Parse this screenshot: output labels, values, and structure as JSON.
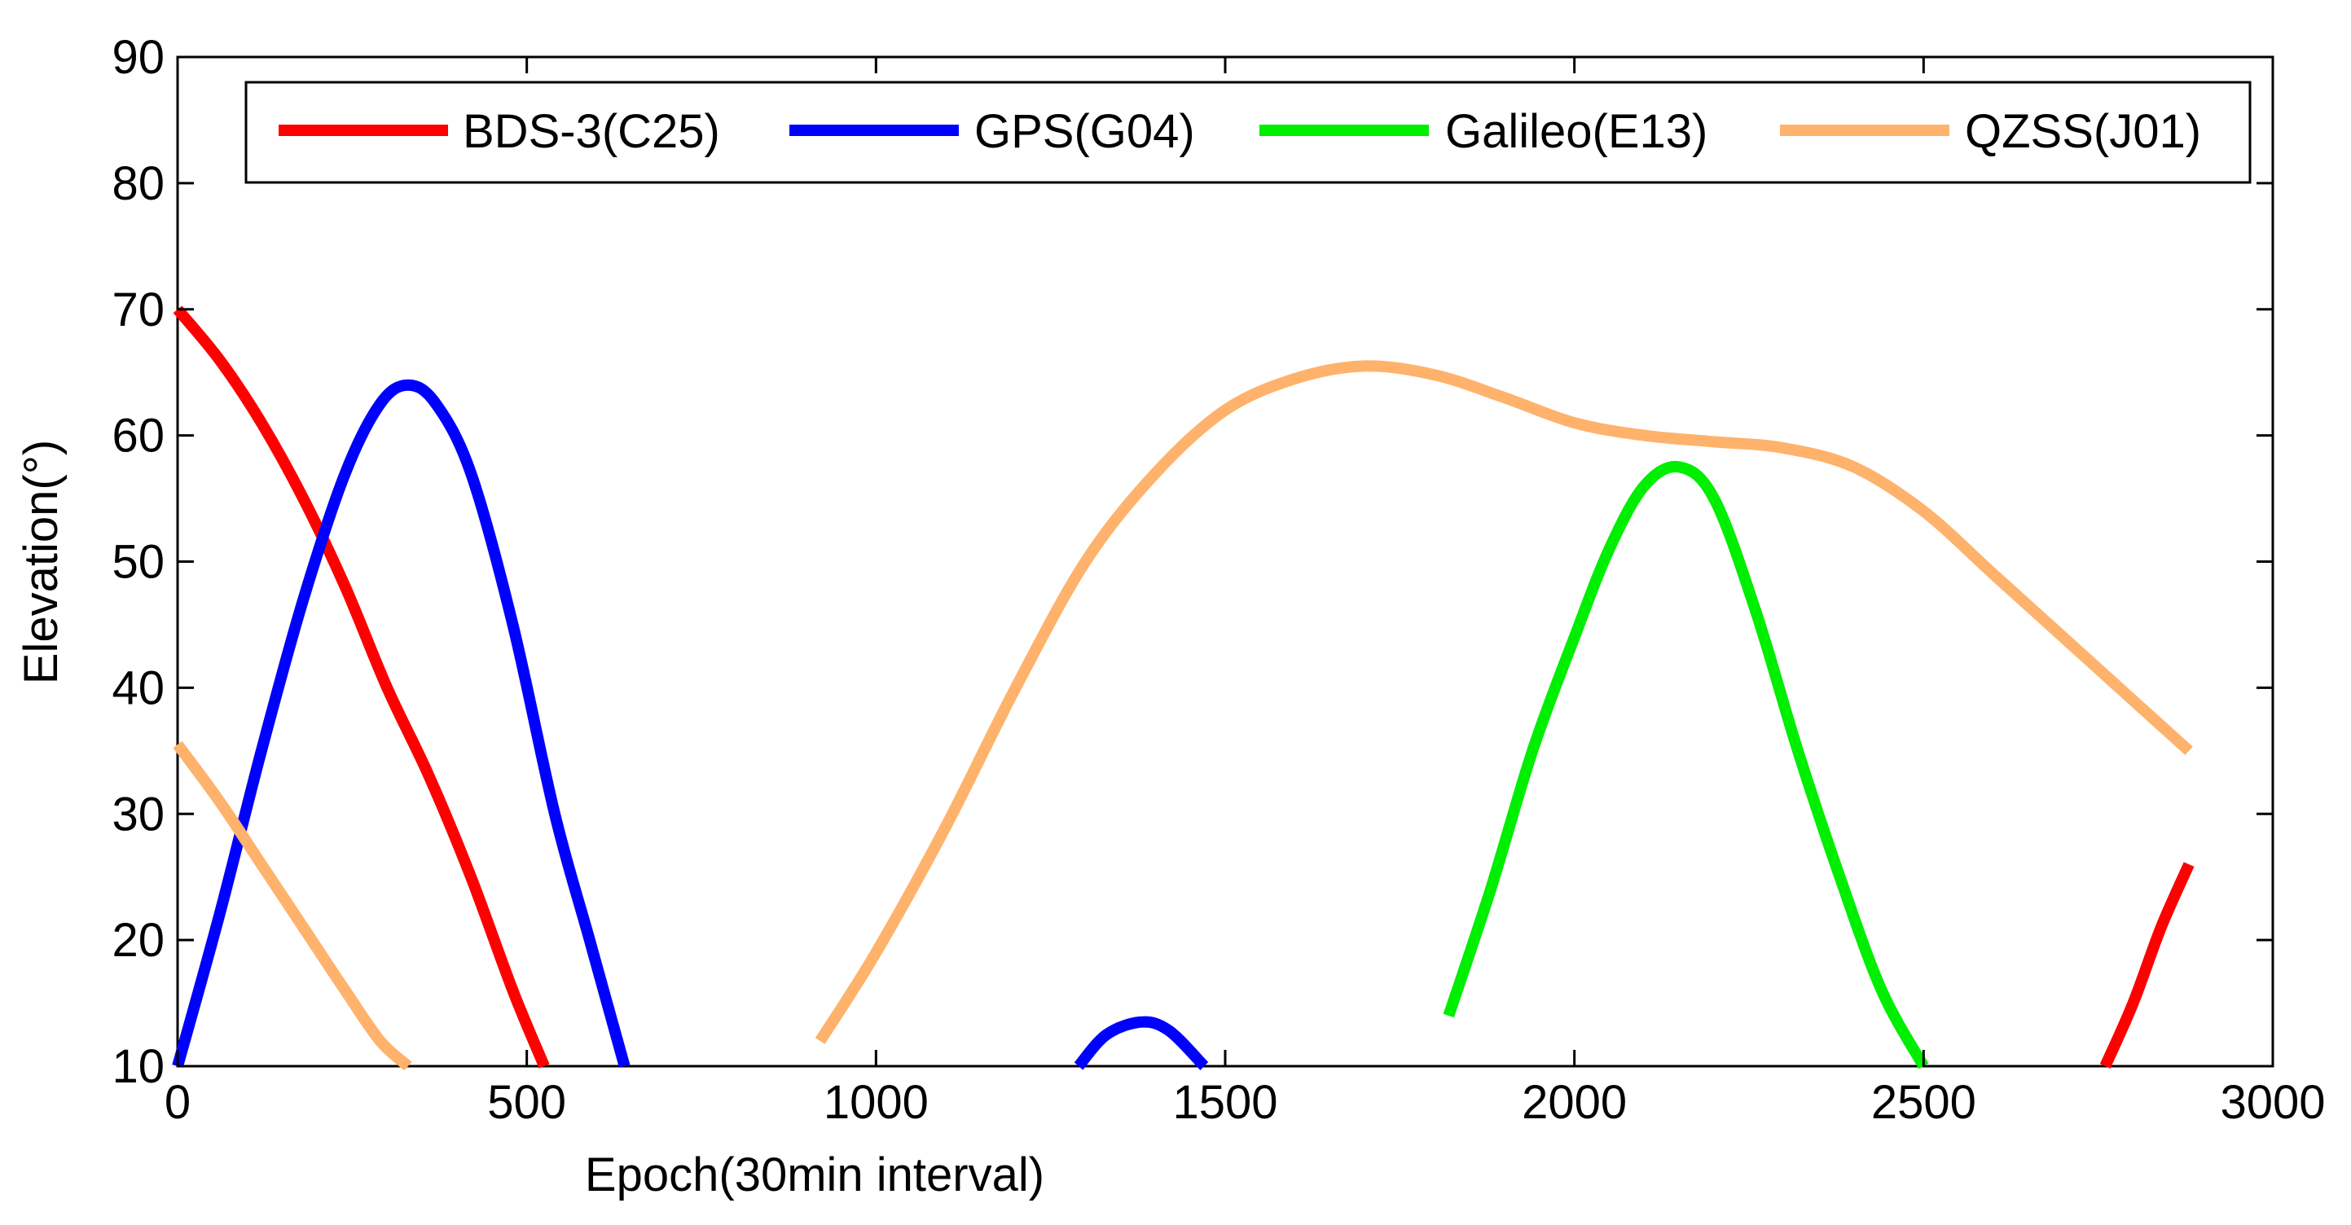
{
  "chart_data": {
    "type": "line",
    "title": "",
    "xlabel": "Epoch(30min interval)",
    "ylabel": "Elevation(°)",
    "xlim": [
      0,
      3000
    ],
    "ylim": [
      10,
      90
    ],
    "xticks": [
      0,
      500,
      1000,
      1500,
      2000,
      2500,
      3000
    ],
    "yticks": [
      10,
      20,
      30,
      40,
      50,
      60,
      70,
      80,
      90
    ],
    "grid": false,
    "legend_position": "top",
    "series": [
      {
        "name": "BDS-3(C25)",
        "color": "#ff0000",
        "segments": [
          [
            [
              0,
              70
            ],
            [
              60,
              66
            ],
            [
              120,
              61
            ],
            [
              180,
              55
            ],
            [
              240,
              48
            ],
            [
              300,
              40
            ],
            [
              360,
              33
            ],
            [
              420,
              25
            ],
            [
              480,
              16
            ],
            [
              525,
              10
            ]
          ],
          [
            [
              2760,
              10
            ],
            [
              2800,
              15
            ],
            [
              2840,
              21
            ],
            [
              2880,
              26
            ]
          ]
        ]
      },
      {
        "name": "GPS(G04)",
        "color": "#0000ff",
        "segments": [
          [
            [
              0,
              10
            ],
            [
              60,
              22
            ],
            [
              120,
              35
            ],
            [
              180,
              47
            ],
            [
              240,
              57
            ],
            [
              290,
              62.5
            ],
            [
              330,
              64
            ],
            [
              370,
              62.5
            ],
            [
              420,
              57
            ],
            [
              480,
              45
            ],
            [
              540,
              30
            ],
            [
              590,
              20
            ],
            [
              640,
              10
            ]
          ],
          [
            [
              1290,
              10
            ],
            [
              1330,
              12.5
            ],
            [
              1380,
              13.5
            ],
            [
              1420,
              12.8
            ],
            [
              1470,
              10
            ]
          ]
        ]
      },
      {
        "name": "Galileo(E13)",
        "color": "#00ee00",
        "segments": [
          [
            [
              1820,
              14
            ],
            [
              1880,
              24
            ],
            [
              1940,
              35
            ],
            [
              2000,
              44
            ],
            [
              2050,
              51
            ],
            [
              2100,
              56
            ],
            [
              2150,
              57.5
            ],
            [
              2200,
              55
            ],
            [
              2260,
              46
            ],
            [
              2320,
              35
            ],
            [
              2380,
              25
            ],
            [
              2440,
              16
            ],
            [
              2500,
              10
            ]
          ]
        ]
      },
      {
        "name": "QZSS(J01)",
        "color": "#ffb26b",
        "segments": [
          [
            [
              0,
              35.5
            ],
            [
              60,
              31
            ],
            [
              120,
              26
            ],
            [
              180,
              21
            ],
            [
              240,
              16
            ],
            [
              290,
              12
            ],
            [
              330,
              10
            ]
          ],
          [
            [
              920,
              12
            ],
            [
              1000,
              19
            ],
            [
              1100,
              29
            ],
            [
              1200,
              40
            ],
            [
              1300,
              50
            ],
            [
              1400,
              57
            ],
            [
              1500,
              62
            ],
            [
              1600,
              64.5
            ],
            [
              1700,
              65.5
            ],
            [
              1800,
              64.8
            ],
            [
              1900,
              63
            ],
            [
              2000,
              61
            ],
            [
              2100,
              60
            ],
            [
              2200,
              59.5
            ],
            [
              2300,
              59
            ],
            [
              2400,
              57.5
            ],
            [
              2500,
              54
            ],
            [
              2600,
              49
            ],
            [
              2700,
              44
            ],
            [
              2800,
              39
            ],
            [
              2880,
              35
            ]
          ]
        ]
      }
    ]
  }
}
